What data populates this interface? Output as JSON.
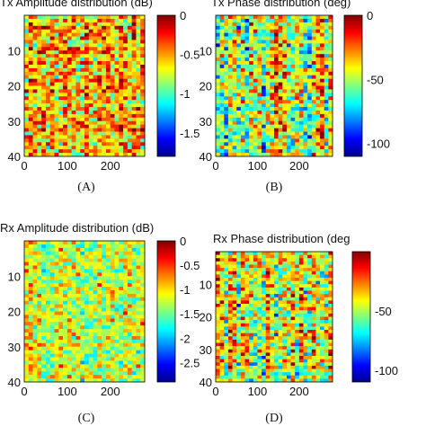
{
  "chart_data": [
    {
      "type": "heatmap",
      "title": "Tx Amplitude distribution (dB)",
      "panel_label": "(A)",
      "x_ticks": [
        0,
        100,
        200
      ],
      "y_ticks": [
        10,
        20,
        30,
        40
      ],
      "xlim": [
        0,
        280
      ],
      "ylim": [
        40,
        0
      ],
      "colorbar": {
        "min": -1.8,
        "max": 0,
        "ticks": [
          0,
          -0.5,
          -1,
          -1.5
        ]
      },
      "grid": {
        "rows": 40,
        "cols": 28,
        "mean": -0.55,
        "spread": 0.45
      }
    },
    {
      "type": "heatmap",
      "title": "Tx Phase distribution (deg)",
      "panel_label": "(B)",
      "x_ticks": [
        0,
        100,
        200
      ],
      "y_ticks": [
        10,
        20,
        30,
        40
      ],
      "xlim": [
        0,
        280
      ],
      "ylim": [
        40,
        0
      ],
      "colorbar": {
        "min": -110,
        "max": 0,
        "ticks": [
          0,
          -50,
          -100
        ]
      },
      "grid": {
        "rows": 40,
        "cols": 28,
        "mean": -45,
        "spread": 30
      }
    },
    {
      "type": "heatmap",
      "title": "Rx Amplitude distribution (dB)",
      "panel_label": "(C)",
      "x_ticks": [
        0,
        100,
        200
      ],
      "y_ticks": [
        10,
        20,
        30,
        40
      ],
      "xlim": [
        0,
        280
      ],
      "ylim": [
        40,
        0
      ],
      "colorbar": {
        "min": -2.9,
        "max": 0,
        "ticks": [
          0,
          -0.5,
          -1,
          -1.5,
          -2,
          -2.5
        ]
      },
      "grid": {
        "rows": 40,
        "cols": 28,
        "mean": -1.2,
        "spread": 0.55
      }
    },
    {
      "type": "heatmap",
      "title": "Rx Phase distribution (deg",
      "panel_label": "(D)",
      "x_ticks": [
        0,
        100,
        200
      ],
      "y_ticks": [
        10,
        20,
        30,
        40
      ],
      "xlim": [
        0,
        280
      ],
      "ylim": [
        40,
        0
      ],
      "colorbar": {
        "min": -110,
        "max": 0,
        "ticks": [
          -50,
          -100
        ]
      },
      "grid": {
        "rows": 40,
        "cols": 28,
        "mean": -45,
        "spread": 30
      }
    }
  ]
}
